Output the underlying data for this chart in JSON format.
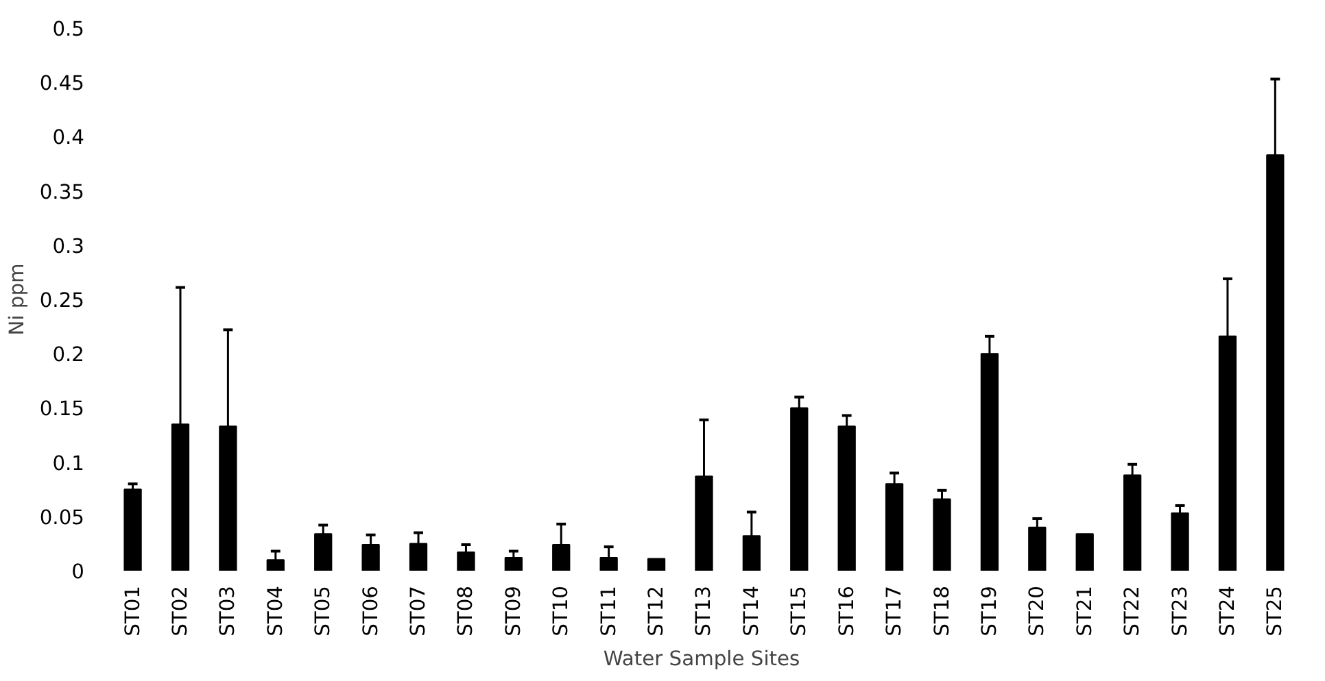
{
  "chart_data": {
    "type": "bar",
    "xlabel": "Water Sample Sites",
    "ylabel": "Ni ppm",
    "categories": [
      "ST01",
      "ST02",
      "ST03",
      "ST04",
      "ST05",
      "ST06",
      "ST07",
      "ST08",
      "ST09",
      "ST10",
      "ST11",
      "ST12",
      "ST13",
      "ST14",
      "ST15",
      "ST16",
      "ST17",
      "ST18",
      "ST19",
      "ST20",
      "ST21",
      "ST22",
      "ST23",
      "ST24",
      "ST25"
    ],
    "values": [
      0.075,
      0.135,
      0.133,
      0.01,
      0.034,
      0.024,
      0.025,
      0.017,
      0.012,
      0.024,
      0.012,
      0.011,
      0.087,
      0.032,
      0.15,
      0.133,
      0.08,
      0.066,
      0.2,
      0.04,
      0.034,
      0.088,
      0.053,
      0.216,
      0.383
    ],
    "errors": [
      [
        0.075,
        0.08
      ],
      [
        0.135,
        0.261
      ],
      [
        0.133,
        0.222
      ],
      [
        0.01,
        0.018
      ],
      [
        0.034,
        0.042
      ],
      [
        0.024,
        0.033
      ],
      [
        0.025,
        0.035
      ],
      [
        0.017,
        0.024
      ],
      [
        0.012,
        0.018
      ],
      [
        0.024,
        0.043
      ],
      [
        0.012,
        0.022
      ],
      null,
      [
        0.087,
        0.139
      ],
      [
        0.032,
        0.054
      ],
      [
        0.15,
        0.16
      ],
      [
        0.133,
        0.143
      ],
      [
        0.08,
        0.09
      ],
      [
        0.066,
        0.074
      ],
      [
        0.2,
        0.216
      ],
      [
        0.04,
        0.048
      ],
      null,
      [
        0.088,
        0.098
      ],
      [
        0.053,
        0.06
      ],
      [
        0.216,
        0.269
      ],
      [
        0.383,
        0.453
      ]
    ],
    "color": "#000000",
    "ylim": [
      0,
      0.5
    ],
    "yticks": [
      0,
      0.05,
      0.1,
      0.15,
      0.2,
      0.25,
      0.3,
      0.35,
      0.4,
      0.45,
      0.5
    ],
    "grid": false
  }
}
